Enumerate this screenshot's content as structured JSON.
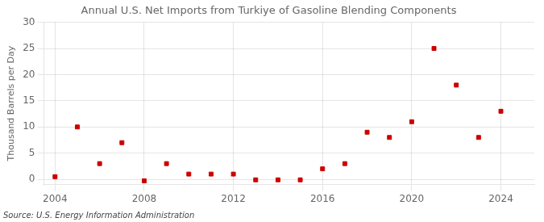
{
  "chart_data": {
    "type": "scatter",
    "title": "Annual U.S. Net Imports from Turkiye of Gasoline Blending Components",
    "ylabel": "Thousand Barrels per Day",
    "annotations": [
      "Source: U.S. Energy Information Administration"
    ],
    "x": [
      2004,
      2005,
      2006,
      2007,
      2008,
      2009,
      2010,
      2011,
      2012,
      2013,
      2014,
      2015,
      2016,
      2017,
      2018,
      2019,
      2020,
      2021,
      2022,
      2023,
      2024
    ],
    "values": [
      0.5,
      10.0,
      3.0,
      7.0,
      -0.3,
      3.0,
      1.0,
      1.0,
      1.0,
      -0.1,
      -0.1,
      -0.1,
      2.0,
      3.0,
      9.0,
      8.0,
      11.0,
      25.0,
      18.0,
      8.0,
      13.0
    ],
    "color": "#cc0000",
    "marker": "square",
    "xlim": [
      2003.5,
      2025.5
    ],
    "xticks": [
      2004,
      2008,
      2012,
      2016,
      2020,
      2024
    ],
    "ylim": [
      -1,
      30
    ],
    "yticks": [
      0,
      5,
      10,
      15,
      20,
      25,
      30
    ],
    "grid": true
  }
}
